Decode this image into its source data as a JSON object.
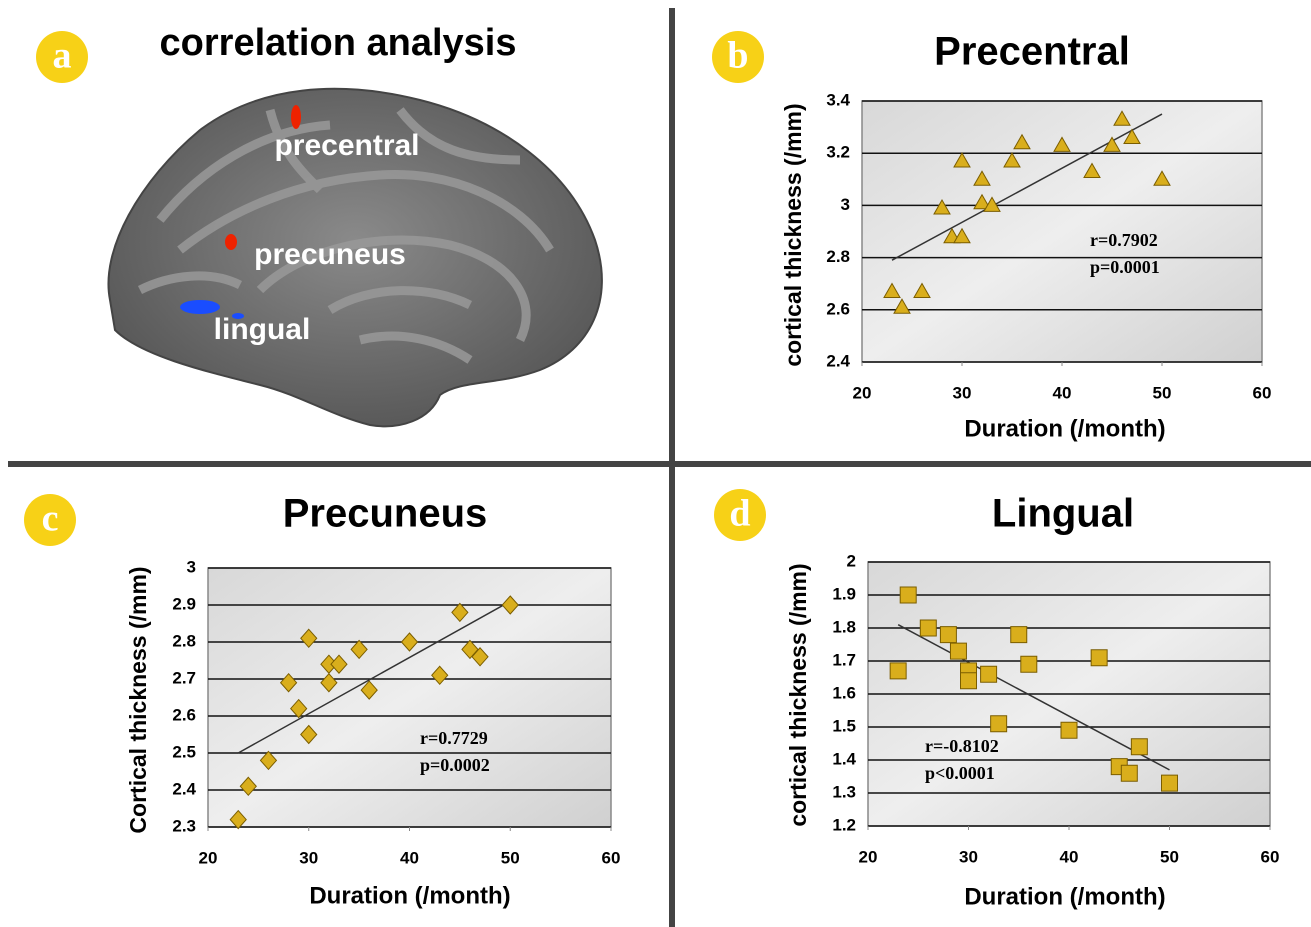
{
  "panel_a": {
    "label": "a",
    "title": "correlation analysis",
    "regions": [
      "precentral",
      "precuneus",
      "lingual"
    ]
  },
  "chart_data": [
    {
      "type": "scatter",
      "label": "b",
      "title": "Precentral",
      "marker": "triangle",
      "color": "#d9ae1c",
      "x_label": "Duration (/month)",
      "y_label": "cortical thickness (/mm)",
      "x": [
        23,
        24,
        26,
        28,
        29,
        30,
        30,
        32,
        32,
        33,
        35,
        36,
        40,
        43,
        45,
        46,
        47,
        50
      ],
      "values": [
        2.67,
        2.61,
        2.67,
        2.99,
        2.88,
        2.88,
        3.17,
        3.1,
        3.01,
        3.0,
        3.17,
        3.24,
        3.23,
        3.13,
        3.23,
        3.33,
        3.26,
        3.1
      ],
      "trendline": {
        "x": [
          23,
          50
        ],
        "y": [
          2.79,
          3.35
        ]
      },
      "annotations": [
        "r=0.7902",
        "p=0.0001"
      ],
      "xlim": [
        20,
        60
      ],
      "xticks": [
        20,
        30,
        40,
        50,
        60
      ],
      "ylim": [
        2.4,
        3.4
      ],
      "yticks": [
        2.4,
        2.6,
        2.8,
        3,
        3.2,
        3.4
      ],
      "grid": true
    },
    {
      "type": "scatter",
      "label": "c",
      "title": "Precuneus",
      "marker": "diamond",
      "color": "#d9ae1c",
      "x_label": "Duration (/month)",
      "y_label": "Cortical thickness (/mm)",
      "x": [
        23,
        24,
        26,
        28,
        29,
        30,
        30,
        32,
        32,
        33,
        35,
        36,
        40,
        43,
        45,
        46,
        47,
        50
      ],
      "values": [
        2.32,
        2.41,
        2.48,
        2.69,
        2.62,
        2.55,
        2.81,
        2.74,
        2.69,
        2.74,
        2.78,
        2.67,
        2.8,
        2.71,
        2.88,
        2.78,
        2.76,
        2.9
      ],
      "trendline": {
        "x": [
          23,
          50
        ],
        "y": [
          2.5,
          2.91
        ]
      },
      "annotations": [
        "r=0.7729",
        "p=0.0002"
      ],
      "xlim": [
        20,
        60
      ],
      "xticks": [
        20,
        30,
        40,
        50,
        60
      ],
      "ylim": [
        2.3,
        3
      ],
      "yticks": [
        2.3,
        2.4,
        2.5,
        2.6,
        2.7,
        2.8,
        2.9,
        3
      ],
      "grid": true
    },
    {
      "type": "scatter",
      "label": "d",
      "title": "Lingual",
      "marker": "square",
      "color": "#d9ae1c",
      "x_label": "Duration (/month)",
      "y_label": "cortical thickness (/mm)",
      "x": [
        23,
        24,
        26,
        28,
        29,
        30,
        30,
        32,
        33,
        35,
        36,
        40,
        43,
        45,
        46,
        47,
        50
      ],
      "values": [
        1.67,
        1.9,
        1.8,
        1.78,
        1.73,
        1.67,
        1.64,
        1.66,
        1.51,
        1.78,
        1.69,
        1.49,
        1.71,
        1.38,
        1.36,
        1.44,
        1.33
      ],
      "trendline": {
        "x": [
          23,
          50
        ],
        "y": [
          1.81,
          1.37
        ]
      },
      "annotations": [
        "r=-0.8102",
        "p<0.0001"
      ],
      "xlim": [
        20,
        60
      ],
      "xticks": [
        20,
        30,
        40,
        50,
        60
      ],
      "ylim": [
        1.2,
        2
      ],
      "yticks": [
        1.2,
        1.3,
        1.4,
        1.5,
        1.6,
        1.7,
        1.8,
        1.9,
        2
      ],
      "grid": true
    }
  ]
}
